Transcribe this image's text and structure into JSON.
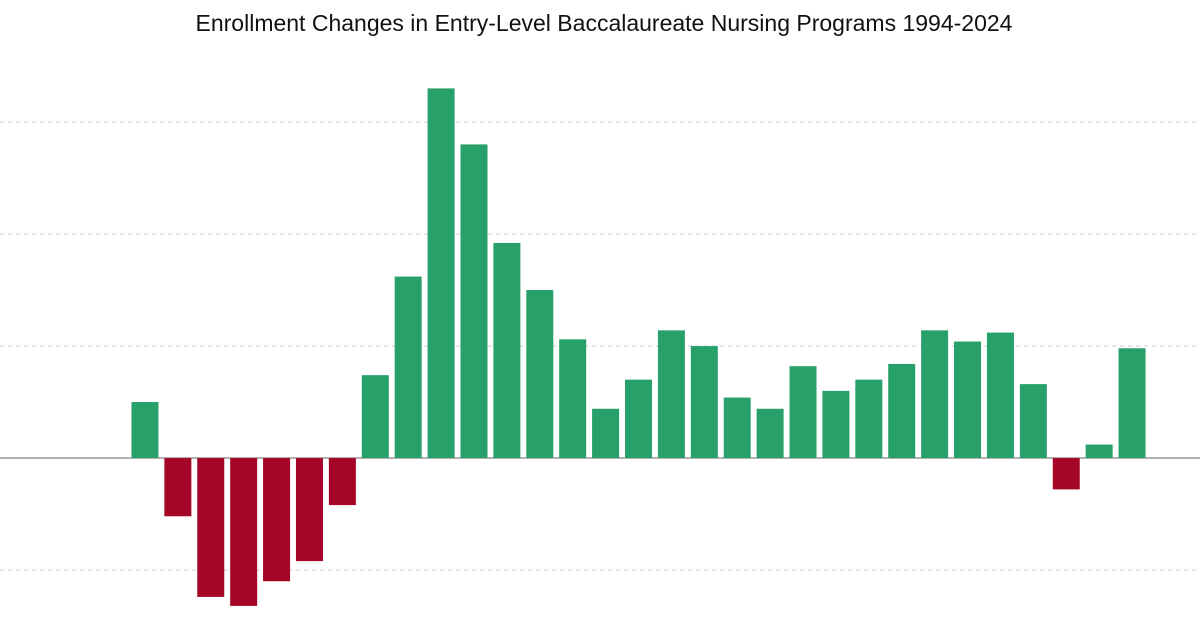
{
  "chart_data": {
    "type": "bar",
    "title": "Enrollment Changes in Entry-Level Baccalaureate Nursing Programs 1994-2024",
    "categories": [
      null,
      null,
      null,
      null,
      null,
      null,
      null,
      null,
      null,
      null,
      null,
      null,
      null,
      null,
      null,
      null,
      null,
      null,
      null,
      null,
      null,
      null,
      null,
      null,
      null,
      null,
      null,
      null,
      null,
      null,
      null
    ],
    "values": [
      2.5,
      -2.6,
      -6.2,
      -6.6,
      -5.5,
      -4.6,
      -2.1,
      3.7,
      8.1,
      16.5,
      14.0,
      9.6,
      7.5,
      5.3,
      2.2,
      3.5,
      5.7,
      5.0,
      2.7,
      2.2,
      4.1,
      3.0,
      3.5,
      4.2,
      5.7,
      5.2,
      5.6,
      3.3,
      -1.4,
      0.6,
      4.9
    ],
    "positive_color": "#27a06a",
    "negative_color": "#a50527",
    "ylim": [
      -7.4,
      17.8
    ],
    "yticks": [
      -5,
      0,
      5,
      10,
      15
    ],
    "grid": true
  }
}
